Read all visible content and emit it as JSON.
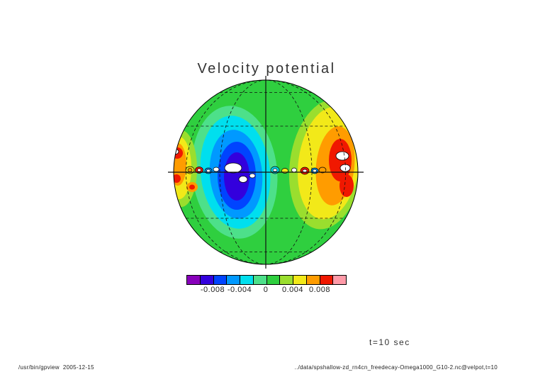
{
  "title": "Velocity potential",
  "time_label": "t=10 sec",
  "footer": {
    "program": "/usr/bin/gpview  2005-12-15",
    "data_path": "../data/spshallow-zd_rn4cn_freedecay-Omega1000_G10-2.nc@velpot,t=10"
  },
  "palette": {
    "purple": "#8800bb",
    "indigo": "#3300dd",
    "blue": "#0044ff",
    "skyblue": "#0099ff",
    "cyan": "#00dfee",
    "aqua": "#4de08a",
    "green": "#2fcf3f",
    "yellowgreen": "#9ade2e",
    "yellow": "#f2e919",
    "orange": "#ff9c00",
    "red": "#f01800",
    "pink": "#ff9aa8",
    "white": "#ffffff"
  },
  "colorbar": {
    "tick_labels": [
      "-0.008",
      "-0.004",
      "0",
      "0.004",
      "0.008"
    ],
    "colors": [
      "#8800bb",
      "#3300dd",
      "#0044ff",
      "#0099ff",
      "#00dfee",
      "#4de08a",
      "#2fcf3f",
      "#9ade2e",
      "#f2e919",
      "#ff9c00",
      "#f01800",
      "#ff9aa8"
    ]
  },
  "chart_data": {
    "type": "heatmap",
    "title": "Velocity potential",
    "variable": "velpot (velocity potential)",
    "time": "t=10 sec",
    "projection": "orthographic globe, equatorial view; dashed lat/lon grid every 30 degrees; solid equator and central meridian",
    "contour_interval": 0.002,
    "levels": [
      -0.01,
      -0.008,
      -0.006,
      -0.004,
      -0.002,
      0,
      0.002,
      0.004,
      0.006,
      0.008,
      0.01
    ],
    "colorbar_tick_labels": [
      "-0.008",
      "-0.004",
      "0",
      "0.004",
      "0.008"
    ],
    "segment_colors": [
      "#8800bb",
      "#3300dd",
      "#0044ff",
      "#0099ff",
      "#00dfee",
      "#4de08a",
      "#2fcf3f",
      "#9ade2e",
      "#f2e919",
      "#ff9c00",
      "#f01800",
      "#ff9aa8"
    ],
    "features": [
      "background field near zero (green) over most of the sphere",
      "large negative anomaly (aqua-cyan-blue-indigo with white cores) west of the central meridian at the equator",
      "large positive anomaly (yellow-orange-red with white cores) near the eastern limb",
      "secondary positive anomaly (yellow-orange-red) on the western limb",
      "train of small alternating positive/negative closed cells along the equator"
    ]
  }
}
